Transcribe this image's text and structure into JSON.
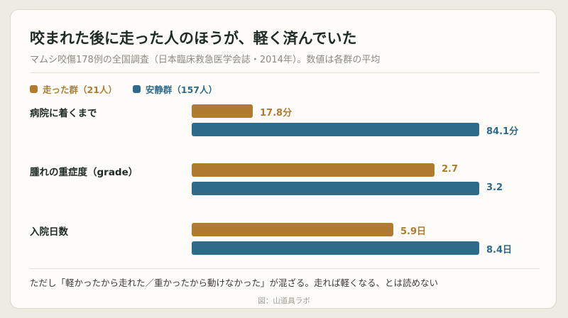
{
  "title": "咬まれた後に走った人のほうが、軽く済んでいた",
  "subtitle": "マムシ咬傷178例の全国調査（日本臨床救急医学会誌・2014年）。数値は各群の平均",
  "colors": {
    "ran": "#b07b30",
    "rest": "#2e6a8a"
  },
  "chart_data": {
    "type": "bar",
    "orientation": "horizontal",
    "grouped_normalized": true,
    "categories": [
      "病院に着くまで",
      "腫れの重症度（grade）",
      "入院日数"
    ],
    "series": [
      {
        "name": "走った群（21人）",
        "values": [
          17.8,
          2.7,
          5.9
        ],
        "labels": [
          "17.8分",
          "2.7",
          "5.9日"
        ]
      },
      {
        "name": "安静群（157人）",
        "values": [
          84.1,
          3.2,
          8.4
        ],
        "labels": [
          "84.1分",
          "3.2",
          "8.4日"
        ]
      }
    ],
    "legend": "top-left",
    "grid": false
  },
  "note": "ただし「軽かったから走れた／重かったから動けなかった」が混ざる。走れば軽くなる、とは読めない",
  "credit": "図：山道具ラボ"
}
